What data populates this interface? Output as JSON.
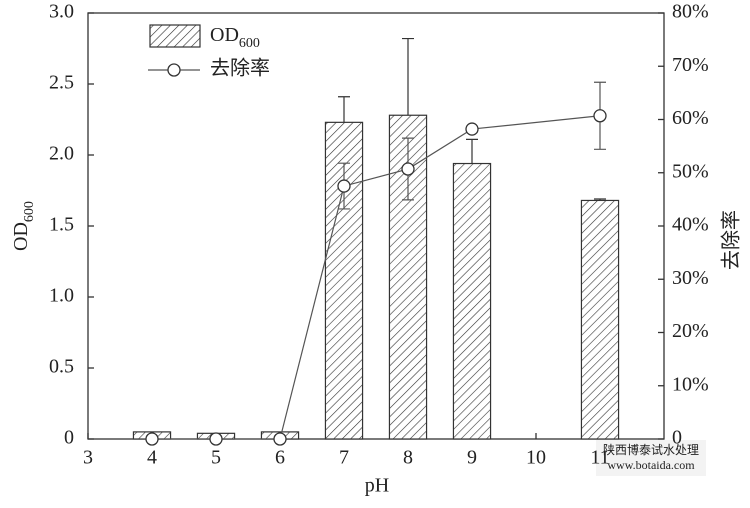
{
  "chart_data": {
    "type": "bar",
    "xlabel": "pH",
    "ylabel": "OD600",
    "y2label": "去除率",
    "x": [
      4,
      5,
      6,
      7,
      8,
      9,
      11
    ],
    "xlim": [
      3,
      12
    ],
    "xticks": [
      3,
      4,
      5,
      6,
      7,
      8,
      9,
      10,
      11
    ],
    "ylim": [
      0,
      3
    ],
    "yticks": [
      0,
      0.5,
      {
        "value": 1,
        "label": "1.0"
      },
      1.5,
      {
        "value": 2,
        "label": "2.0"
      },
      2.5,
      {
        "value": 3,
        "label": "3.0"
      }
    ],
    "y2lim": [
      0,
      80
    ],
    "y2ticks": [
      0,
      {
        "value": 10,
        "label": "10%"
      },
      {
        "value": 20,
        "label": "20%"
      },
      {
        "value": 30,
        "label": "30%"
      },
      {
        "value": 40,
        "label": "40%"
      },
      {
        "value": 50,
        "label": "50%"
      },
      {
        "value": 60,
        "label": "60%"
      },
      {
        "value": 70,
        "label": "70%"
      },
      {
        "value": 80,
        "label": "80%"
      }
    ],
    "series": [
      {
        "name": "OD600",
        "type": "bar",
        "color": "#333333",
        "values": [
          0.05,
          0.04,
          0.05,
          2.23,
          2.28,
          1.94,
          1.68
        ],
        "errors": [
          0,
          0,
          0,
          0.18,
          0.54,
          0.17,
          0.01
        ]
      },
      {
        "name": "去除率",
        "type": "line",
        "axis": "y2",
        "color": "#555555",
        "values": [
          0,
          0,
          0,
          47.5,
          50.7,
          58.2,
          60.7
        ],
        "errors": [
          0,
          0,
          0,
          4.3,
          5.8,
          0.5,
          6.3
        ]
      }
    ],
    "annotations": [
      "陕西博泰试水处理",
      "www.botaida.com"
    ]
  }
}
